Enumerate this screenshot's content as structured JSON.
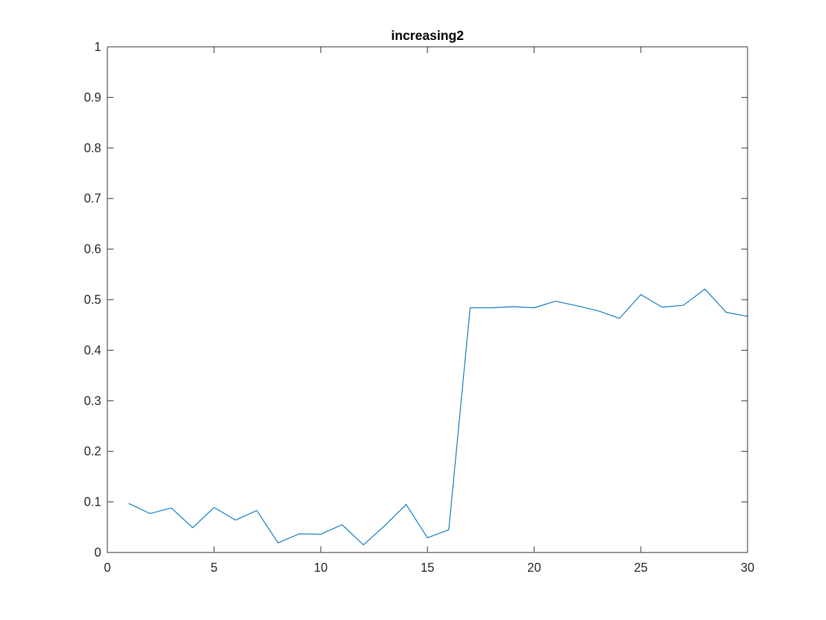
{
  "chart_data": {
    "type": "line",
    "title": "increasing2",
    "xlabel": "",
    "ylabel": "",
    "xlim": [
      0,
      30
    ],
    "ylim": [
      0,
      1
    ],
    "xticks": [
      0,
      5,
      10,
      15,
      20,
      25,
      30
    ],
    "yticks": [
      0,
      0.1,
      0.2,
      0.3,
      0.4,
      0.5,
      0.6,
      0.7,
      0.8,
      0.9,
      1
    ],
    "xtick_labels": [
      "0",
      "5",
      "10",
      "15",
      "20",
      "25",
      "30"
    ],
    "ytick_labels": [
      "0",
      "0.1",
      "0.2",
      "0.3",
      "0.4",
      "0.5",
      "0.6",
      "0.7",
      "0.8",
      "0.9",
      "1"
    ],
    "grid": false,
    "box": true,
    "series": [
      {
        "color": "#0072BD",
        "x": [
          1,
          2,
          3,
          4,
          5,
          6,
          7,
          8,
          9,
          10,
          11,
          12,
          13,
          14,
          15,
          16,
          17,
          18,
          19,
          20,
          21,
          22,
          23,
          24,
          25,
          26,
          27,
          28,
          29,
          30
        ],
        "y": [
          0.097,
          0.077,
          0.088,
          0.049,
          0.089,
          0.064,
          0.083,
          0.019,
          0.037,
          0.036,
          0.055,
          0.015,
          0.053,
          0.095,
          0.029,
          0.045,
          0.484,
          0.484,
          0.486,
          0.484,
          0.497,
          0.488,
          0.478,
          0.463,
          0.51,
          0.485,
          0.489,
          0.521,
          0.475,
          0.467
        ]
      }
    ]
  }
}
